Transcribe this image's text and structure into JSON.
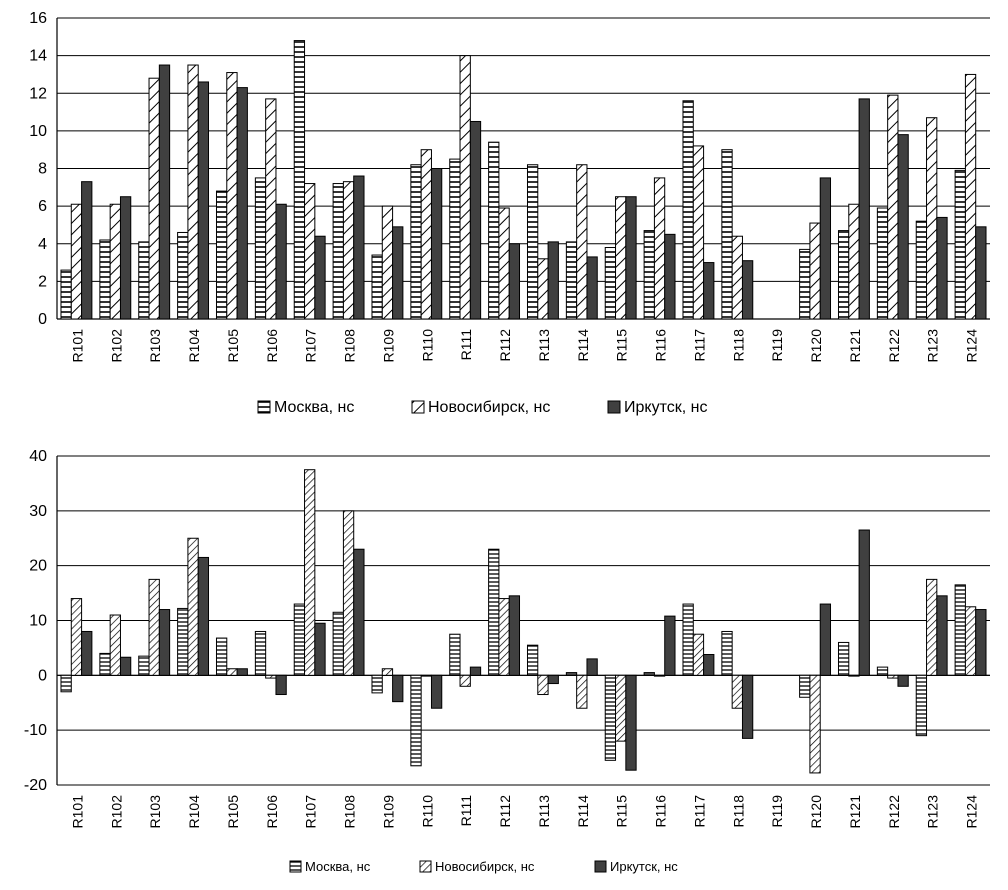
{
  "chart_data": [
    {
      "type": "bar",
      "categories": [
        "R101",
        "R102",
        "R103",
        "R104",
        "R105",
        "R106",
        "R107",
        "R108",
        "R109",
        "R110",
        "R111",
        "R112",
        "R113",
        "R114",
        "R115",
        "R116",
        "R117",
        "R118",
        "R119",
        "R120",
        "R121",
        "R122",
        "R123",
        "R124"
      ],
      "ylim": [
        0,
        16
      ],
      "yticks": [
        "0",
        "2",
        "4",
        "6",
        "8",
        "10",
        "12",
        "14",
        "16"
      ],
      "grid": "horizontal",
      "legend_position": "bottom",
      "series": [
        {
          "name": "Москва, нс",
          "pattern": "horizontal-stripes",
          "values": [
            2.6,
            4.2,
            4.1,
            4.6,
            6.8,
            7.5,
            14.8,
            7.2,
            3.4,
            8.2,
            8.5,
            9.4,
            8.2,
            4.1,
            3.8,
            4.7,
            11.6,
            9.0,
            null,
            3.7,
            4.7,
            5.9,
            5.2,
            7.9
          ]
        },
        {
          "name": "Новосибирск, нс",
          "pattern": "diagonal-stripes",
          "values": [
            6.1,
            6.1,
            12.8,
            13.5,
            13.1,
            11.7,
            7.2,
            7.3,
            6.0,
            9.0,
            14.0,
            5.9,
            3.2,
            8.2,
            6.5,
            7.5,
            9.2,
            4.4,
            null,
            5.1,
            6.1,
            11.9,
            10.7,
            13.0
          ]
        },
        {
          "name": "Иркутск, нс",
          "pattern": "solid-dark",
          "values": [
            7.3,
            6.5,
            13.5,
            12.6,
            12.3,
            6.1,
            4.4,
            7.6,
            4.9,
            8.0,
            10.5,
            4.0,
            4.1,
            3.3,
            6.5,
            4.5,
            3.0,
            3.1,
            null,
            7.5,
            11.7,
            9.8,
            5.4,
            4.9
          ]
        }
      ]
    },
    {
      "type": "bar",
      "categories": [
        "R101",
        "R102",
        "R103",
        "R104",
        "R105",
        "R106",
        "R107",
        "R108",
        "R109",
        "R110",
        "R111",
        "R112",
        "R113",
        "R114",
        "R115",
        "R116",
        "R117",
        "R118",
        "R119",
        "R120",
        "R121",
        "R122",
        "R123",
        "R124"
      ],
      "ylim": [
        -20,
        40
      ],
      "yticks": [
        "-20",
        "-10",
        "0",
        "10",
        "20",
        "30",
        "40"
      ],
      "grid": "horizontal",
      "legend_position": "bottom",
      "series": [
        {
          "name": "Москва, нс",
          "pattern": "horizontal-stripes",
          "values": [
            -3.0,
            4.0,
            3.5,
            12.2,
            6.8,
            8.0,
            13.0,
            11.5,
            -3.2,
            -16.5,
            7.5,
            23.0,
            5.5,
            0.5,
            -15.5,
            0.5,
            13.0,
            8.0,
            null,
            -4.0,
            6.0,
            1.5,
            -11.0,
            16.5
          ]
        },
        {
          "name": "Новосибирск, нс",
          "pattern": "diagonal-stripes",
          "values": [
            14.0,
            11.0,
            17.5,
            25.0,
            1.2,
            -0.5,
            37.5,
            30.0,
            1.2,
            0.0,
            -2.0,
            14.0,
            -3.5,
            -6.0,
            -12.0,
            0.0,
            7.5,
            -6.0,
            null,
            -17.8,
            0.0,
            -0.5,
            17.5,
            12.5
          ]
        },
        {
          "name": "Иркутск, нс",
          "pattern": "solid-dark",
          "values": [
            8.0,
            3.3,
            12.0,
            21.5,
            1.2,
            -3.5,
            9.5,
            23.0,
            -4.8,
            -6.0,
            1.5,
            14.5,
            -1.5,
            3.0,
            -17.3,
            10.8,
            3.8,
            -11.5,
            null,
            13.0,
            26.5,
            -2.0,
            14.5,
            12.0
          ]
        }
      ]
    }
  ],
  "colors": {
    "dark_bar": "#404040",
    "axis": "#000000",
    "grid": "#000000"
  }
}
